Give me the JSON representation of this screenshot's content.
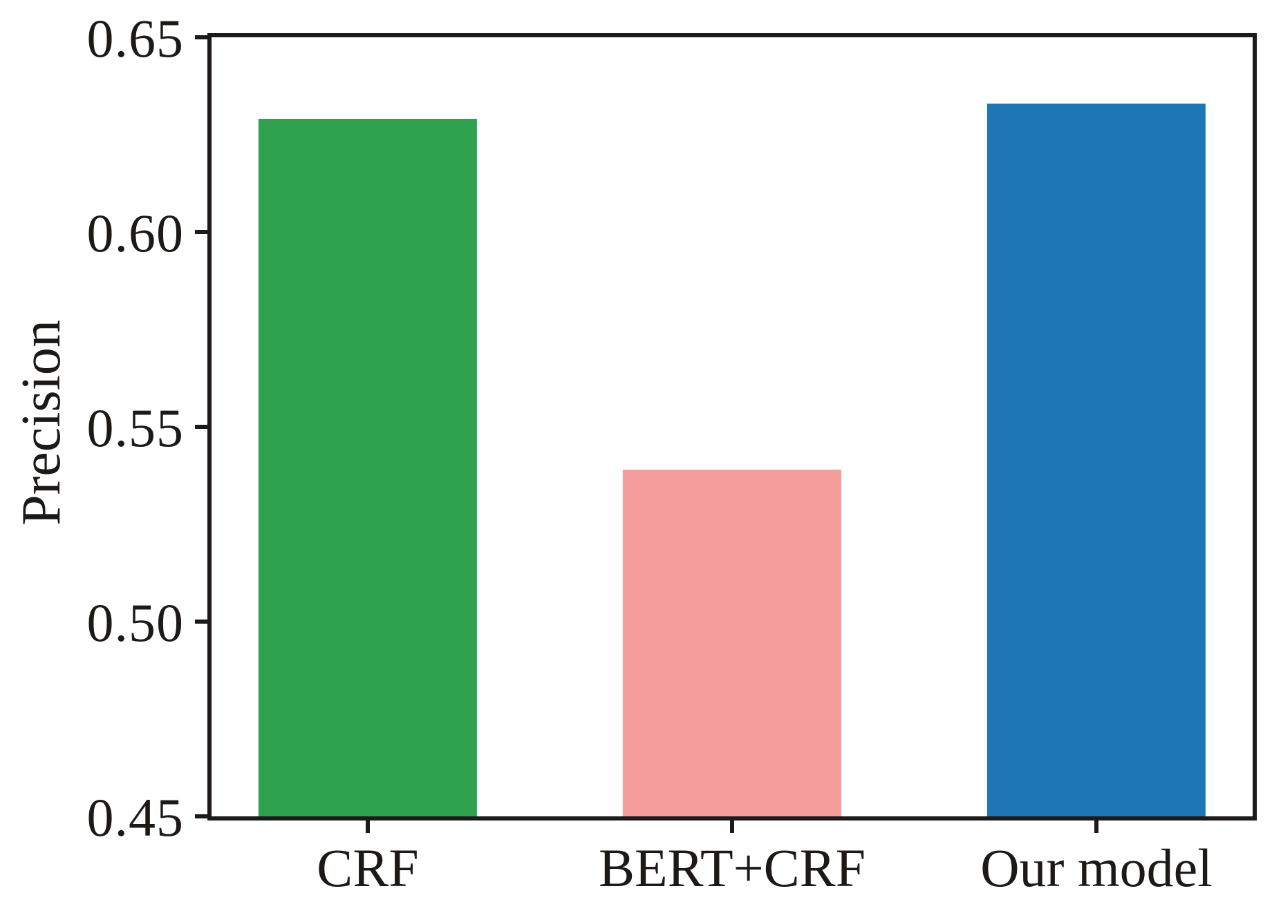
{
  "chart_data": {
    "type": "bar",
    "ylabel": "Precision",
    "categories": [
      "CRF",
      "BERT+CRF",
      "Our model"
    ],
    "values": [
      0.629,
      0.539,
      0.633
    ],
    "colors": [
      "#2EA24E",
      "#F59C9C",
      "#1E77B4"
    ],
    "ylim": [
      0.45,
      0.65
    ],
    "yticks": [
      0.45,
      0.5,
      0.55,
      0.6,
      0.65
    ],
    "ytick_labels": [
      "0.45",
      "0.50",
      "0.55",
      "0.60",
      "0.65"
    ],
    "grid": false,
    "legend": "none",
    "frame": "full-box",
    "tick_direction": "out",
    "bar_centers_frac": [
      0.15,
      0.5,
      0.85
    ],
    "bar_width_frac": 0.21,
    "axis_color": "#1d1a19",
    "text_color": "#1c1917",
    "background_color": "#ffffff"
  }
}
